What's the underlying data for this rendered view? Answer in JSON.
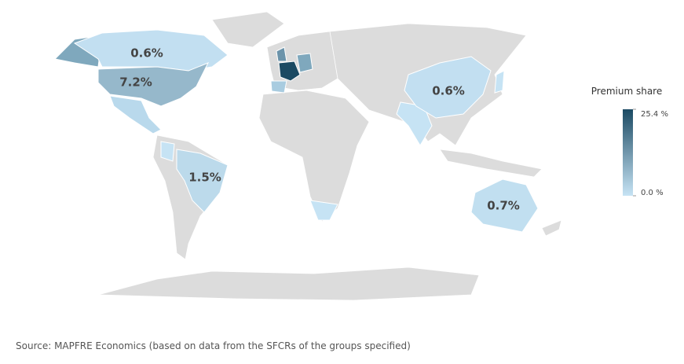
{
  "chart_data": {
    "type": "choropleth",
    "values": [
      0.6,
      7.2,
      1.5,
      0.6,
      0.7
    ],
    "value_labels": [
      "0.6%",
      "7.2%",
      "1.5%",
      "0.6%",
      "0.7%"
    ],
    "legend_title": "Premium share",
    "colorbar_lim": [
      0,
      25.4
    ],
    "colorbar_ticks": [
      {
        "value": 25.4,
        "label": "25.4 %"
      },
      {
        "value": 0,
        "label": "0.0 %"
      }
    ],
    "colors": [
      "#c6e3f4",
      "#1b4a63"
    ],
    "source": "Source: MAPFRE Economics (based on data from the SFCRs of the groups specified)"
  }
}
